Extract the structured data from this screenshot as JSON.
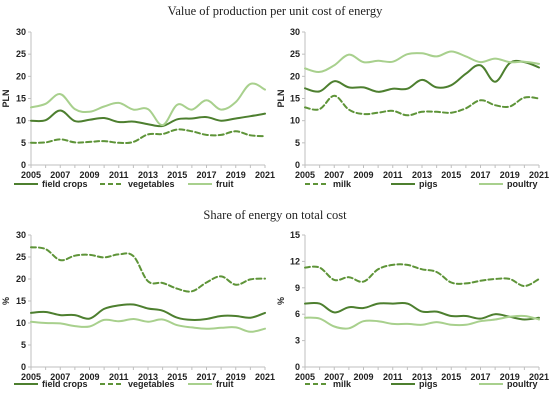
{
  "titles": {
    "top": "Value of production per unit cost of energy",
    "bottom": "Share of energy on total cost"
  },
  "colors": {
    "dark": "#4d7f2f",
    "mid": "#5e9438",
    "light": "#a8d08d",
    "axis": "#bfbfbf"
  },
  "chart_data": [
    {
      "type": "line",
      "title": "Value of production per unit cost of energy",
      "ylabel": "PLN",
      "ylim": [
        0,
        30
      ],
      "yticks": [
        0,
        5,
        10,
        15,
        20,
        25,
        30
      ],
      "x": [
        2005,
        2006,
        2007,
        2008,
        2009,
        2010,
        2011,
        2012,
        2013,
        2014,
        2015,
        2016,
        2017,
        2018,
        2019,
        2020,
        2021
      ],
      "xticks": [
        2005,
        2007,
        2009,
        2011,
        2013,
        2015,
        2017,
        2019,
        2021
      ],
      "legend_position": "bottom",
      "series": [
        {
          "name": "field crops",
          "style": "solid-dark",
          "values": [
            10.0,
            10.1,
            12.3,
            9.9,
            10.2,
            10.6,
            9.7,
            9.8,
            9.2,
            8.8,
            10.3,
            10.5,
            10.8,
            10.0,
            10.5,
            11.0,
            11.6
          ]
        },
        {
          "name": "vegetables",
          "style": "dashed",
          "values": [
            5.0,
            5.1,
            5.8,
            5.1,
            5.2,
            5.4,
            5.0,
            5.2,
            6.9,
            7.0,
            8.0,
            7.6,
            6.8,
            6.8,
            7.6,
            6.7,
            6.5
          ]
        },
        {
          "name": "fruit",
          "style": "solid-light",
          "values": [
            13.0,
            13.8,
            16.0,
            12.6,
            12.0,
            13.2,
            14.0,
            12.5,
            12.6,
            9.0,
            13.6,
            12.5,
            14.6,
            12.5,
            14.2,
            18.3,
            17.0
          ]
        }
      ]
    },
    {
      "type": "line",
      "ylabel": "PLN",
      "ylim": [
        0,
        30
      ],
      "yticks": [
        0,
        5,
        10,
        15,
        20,
        25,
        30
      ],
      "x": [
        2005,
        2006,
        2007,
        2008,
        2009,
        2010,
        2011,
        2012,
        2013,
        2014,
        2015,
        2016,
        2017,
        2018,
        2019,
        2020,
        2021
      ],
      "xticks": [
        2005,
        2007,
        2009,
        2011,
        2013,
        2015,
        2017,
        2019,
        2021
      ],
      "legend_position": "bottom",
      "series": [
        {
          "name": "milk",
          "style": "dashed",
          "values": [
            13.0,
            12.6,
            15.6,
            12.5,
            11.5,
            11.8,
            12.2,
            11.2,
            12.0,
            12.0,
            11.8,
            12.8,
            14.6,
            13.5,
            13.2,
            15.2,
            15.0
          ]
        },
        {
          "name": "pigs",
          "style": "solid-dark",
          "values": [
            17.3,
            16.6,
            18.9,
            17.5,
            17.5,
            16.5,
            17.2,
            17.2,
            19.2,
            17.5,
            18.0,
            20.6,
            22.5,
            18.8,
            23.0,
            23.2,
            22.0
          ]
        },
        {
          "name": "poultry",
          "style": "solid-light",
          "values": [
            21.8,
            21.0,
            22.5,
            24.9,
            23.2,
            23.5,
            23.3,
            25.0,
            25.2,
            24.5,
            25.6,
            24.5,
            23.2,
            24.0,
            23.2,
            23.3,
            22.8
          ]
        }
      ]
    },
    {
      "type": "line",
      "title": "Share of energy on total cost",
      "ylabel": "%",
      "ylim": [
        0,
        30
      ],
      "yticks": [
        0,
        5,
        10,
        15,
        20,
        25,
        30
      ],
      "x": [
        2005,
        2006,
        2007,
        2008,
        2009,
        2010,
        2011,
        2012,
        2013,
        2014,
        2015,
        2016,
        2017,
        2018,
        2019,
        2020,
        2021
      ],
      "xticks": [
        2005,
        2007,
        2009,
        2011,
        2013,
        2015,
        2017,
        2019,
        2021
      ],
      "legend_position": "bottom",
      "series": [
        {
          "name": "field crops",
          "style": "solid-dark",
          "values": [
            12.3,
            12.5,
            11.8,
            11.8,
            11.0,
            13.2,
            14.0,
            14.2,
            13.3,
            12.8,
            11.2,
            10.7,
            10.9,
            11.6,
            11.6,
            11.2,
            12.3
          ]
        },
        {
          "name": "vegetables",
          "style": "dashed",
          "values": [
            27.2,
            26.8,
            24.3,
            25.3,
            25.5,
            24.9,
            25.6,
            25.2,
            19.5,
            19.1,
            17.8,
            17.2,
            19.2,
            20.6,
            18.7,
            19.9,
            20.1
          ]
        },
        {
          "name": "fruit",
          "style": "solid-light",
          "values": [
            10.3,
            10.0,
            9.9,
            9.3,
            9.2,
            10.7,
            10.4,
            10.9,
            10.3,
            10.8,
            9.5,
            9.0,
            8.7,
            8.9,
            9.0,
            8.0,
            8.7
          ]
        }
      ]
    },
    {
      "type": "line",
      "ylabel": "%",
      "ylim": [
        0,
        15
      ],
      "yticks": [
        0,
        3,
        6,
        9,
        12,
        15
      ],
      "x": [
        2005,
        2006,
        2007,
        2008,
        2009,
        2010,
        2011,
        2012,
        2013,
        2014,
        2015,
        2016,
        2017,
        2018,
        2019,
        2020,
        2021
      ],
      "xticks": [
        2005,
        2007,
        2009,
        2011,
        2013,
        2015,
        2017,
        2019,
        2021
      ],
      "legend_position": "bottom",
      "series": [
        {
          "name": "milk",
          "style": "dashed",
          "values": [
            11.3,
            11.3,
            9.9,
            10.2,
            9.7,
            11.1,
            11.6,
            11.6,
            11.1,
            10.8,
            9.6,
            9.5,
            9.8,
            10.0,
            10.0,
            9.2,
            10.0
          ]
        },
        {
          "name": "pigs",
          "style": "solid-dark",
          "values": [
            7.2,
            7.2,
            6.2,
            6.8,
            6.7,
            7.2,
            7.2,
            7.2,
            6.3,
            6.3,
            5.8,
            5.8,
            5.5,
            6.0,
            5.7,
            5.4,
            5.6
          ]
        },
        {
          "name": "poultry",
          "style": "solid-light",
          "values": [
            5.6,
            5.5,
            4.6,
            4.4,
            5.2,
            5.2,
            4.9,
            4.9,
            4.8,
            5.1,
            4.8,
            4.8,
            5.2,
            5.4,
            5.7,
            5.8,
            5.4
          ]
        }
      ]
    }
  ]
}
